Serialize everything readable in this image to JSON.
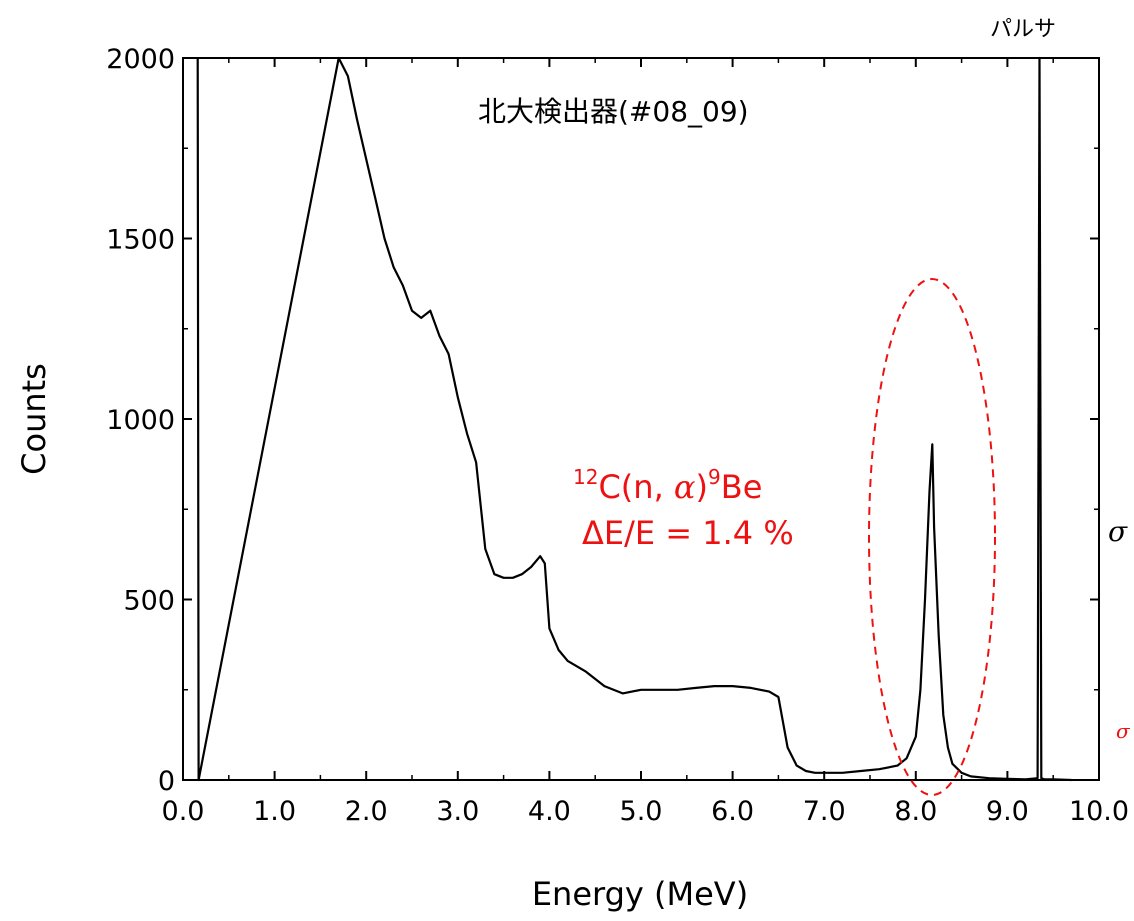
{
  "chart_data": {
    "type": "line",
    "title": "北大検出器(#08_09)",
    "xlabel": "Energy (MeV)",
    "ylabel": "Counts",
    "xlim": [
      0,
      10
    ],
    "ylim": [
      0,
      2000
    ],
    "x_ticks": [
      "0.0",
      "1.0",
      "2.0",
      "3.0",
      "4.0",
      "5.0",
      "6.0",
      "7.0",
      "8.0",
      "9.0",
      "10.0"
    ],
    "y_ticks": [
      "0",
      "500",
      "1000",
      "1500",
      "2000"
    ],
    "grid": false,
    "line_color": "#000000",
    "annotation_color": "#ee1111",
    "series": [
      {
        "x": [
          0.16,
          0.17,
          1.7,
          1.8,
          1.9,
          2.0,
          2.1,
          2.2,
          2.3,
          2.4,
          2.5,
          2.6,
          2.7,
          2.8,
          2.9,
          3.0,
          3.1,
          3.2,
          3.3,
          3.4,
          3.5,
          3.6,
          3.7,
          3.8,
          3.9,
          3.95,
          4.0,
          4.1,
          4.2,
          4.4,
          4.6,
          4.8,
          5.0,
          5.2,
          5.4,
          5.6,
          5.8,
          6.0,
          6.2,
          6.4,
          6.5,
          6.55,
          6.6,
          6.7,
          6.8,
          6.9,
          7.0,
          7.2,
          7.4,
          7.6,
          7.8,
          7.9,
          8.0,
          8.05,
          8.1,
          8.15,
          8.18,
          8.2,
          8.25,
          8.3,
          8.35,
          8.4,
          8.5,
          8.6,
          8.8,
          9.0,
          9.2,
          9.33,
          9.35,
          9.37,
          9.4,
          9.5,
          9.7
        ],
        "y": [
          2000,
          0,
          2000,
          1950,
          1830,
          1720,
          1610,
          1500,
          1420,
          1370,
          1300,
          1280,
          1300,
          1230,
          1180,
          1060,
          960,
          880,
          640,
          570,
          560,
          560,
          570,
          590,
          620,
          600,
          420,
          360,
          330,
          300,
          260,
          240,
          250,
          250,
          250,
          255,
          260,
          260,
          255,
          245,
          230,
          160,
          90,
          40,
          25,
          20,
          20,
          20,
          25,
          30,
          40,
          60,
          120,
          250,
          500,
          800,
          930,
          700,
          400,
          180,
          90,
          45,
          20,
          10,
          5,
          3,
          2,
          5,
          2000,
          5,
          2,
          2,
          0
        ]
      }
    ],
    "annotations": {
      "peak_label": "12C(n, α)9Be",
      "resolution": "ΔE/E = 1.4 %",
      "pulser": "パルサ",
      "right_edge_glyphs": [
        "σ",
        "σ"
      ]
    }
  },
  "labels": {
    "peak_sup_mass": "12",
    "peak_main": "C(n, ",
    "peak_alpha": "α",
    "peak_close": ")",
    "peak_sup_be": "9",
    "peak_be": "Be",
    "resolution": "ΔE/E = 1.4 %",
    "pulser": "パルサ",
    "title": "北大検出器(#08_09)",
    "xlabel": "Energy (MeV)",
    "ylabel": "Counts",
    "edge_sigma_1": "σ",
    "edge_sigma_2": "σ"
  }
}
